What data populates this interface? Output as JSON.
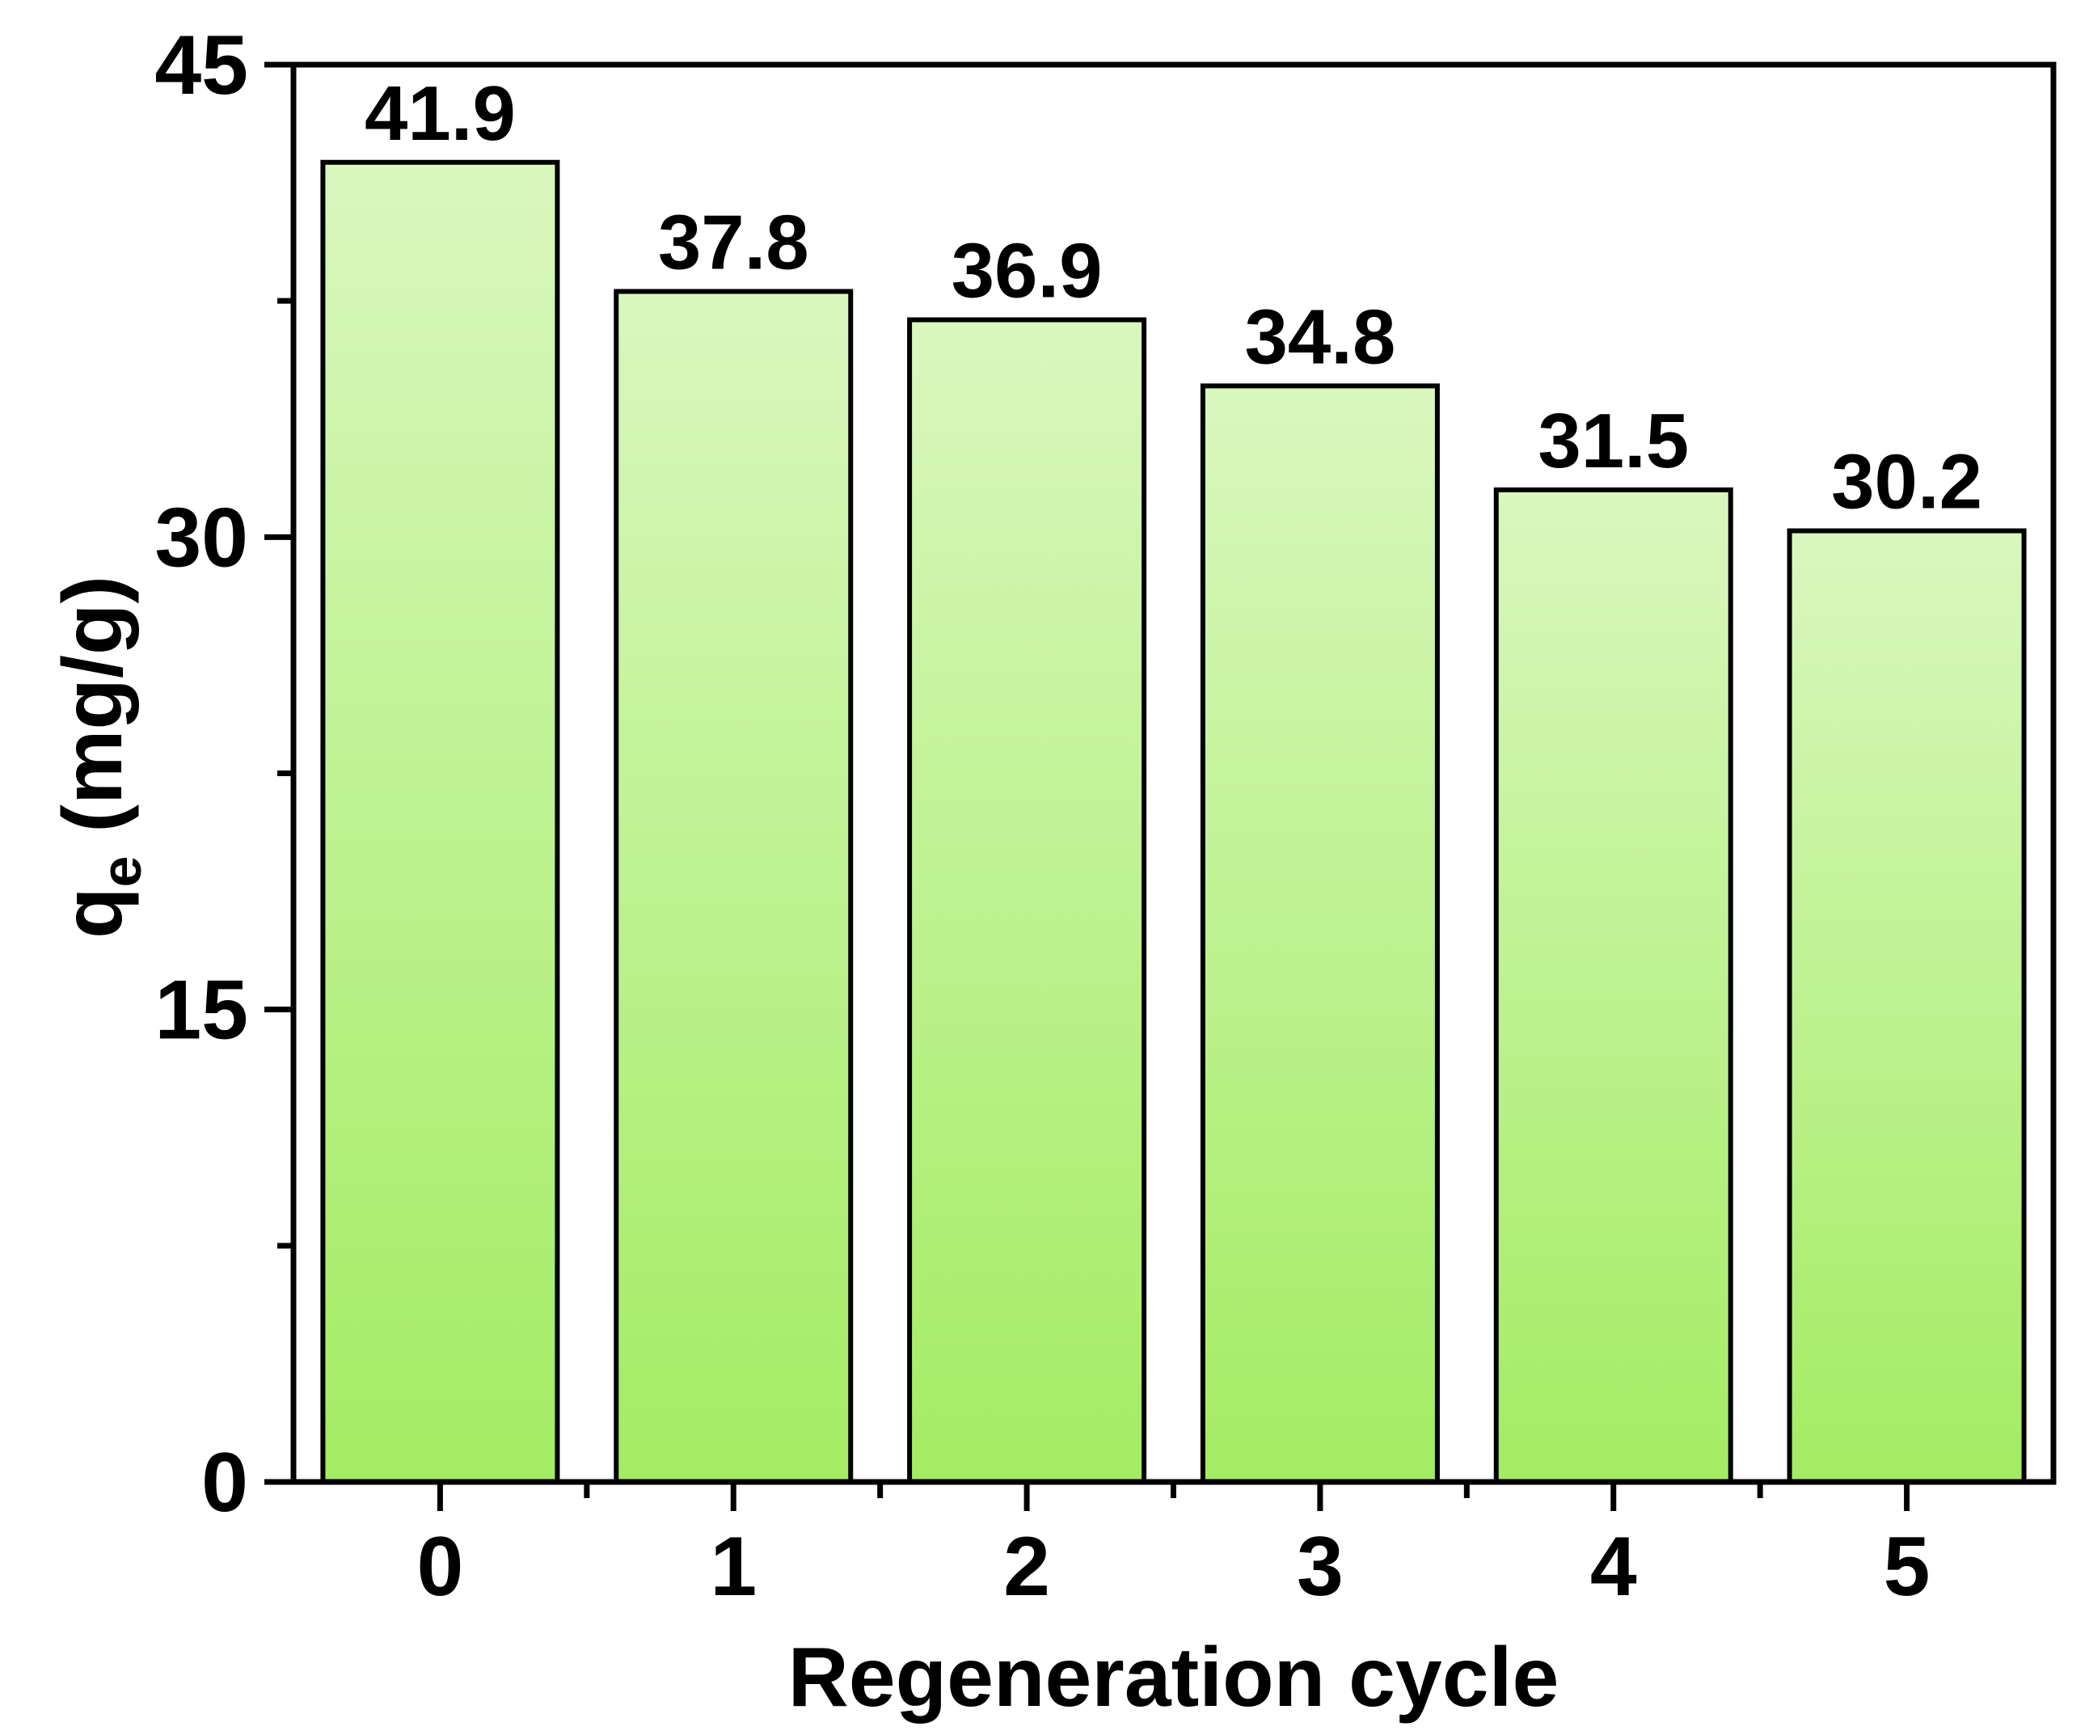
{
  "chart_data": {
    "type": "bar",
    "categories": [
      "0",
      "1",
      "2",
      "3",
      "4",
      "5"
    ],
    "values": [
      41.9,
      37.8,
      36.9,
      34.8,
      31.5,
      30.2
    ],
    "data_labels": [
      "41.9",
      "37.8",
      "36.9",
      "34.8",
      "31.5",
      "30.2"
    ],
    "title": "",
    "xlabel": "Regeneration cycle",
    "ylabel": {
      "base": "q",
      "subscript": "e",
      "rest": " (mg/g)"
    },
    "ylim": [
      0,
      45
    ],
    "y_ticks": [
      0,
      15,
      30,
      45
    ],
    "y_tick_labels": [
      "0",
      "15",
      "30",
      "45"
    ],
    "y_minor_ticks": [
      7.5,
      22.5,
      37.5
    ],
    "grid": false,
    "legend": "none",
    "colors": {
      "bar_top": "#d9f7be",
      "bar_bottom": "#a3ec62",
      "bar_edge": "#000000",
      "axis": "#000000"
    }
  }
}
